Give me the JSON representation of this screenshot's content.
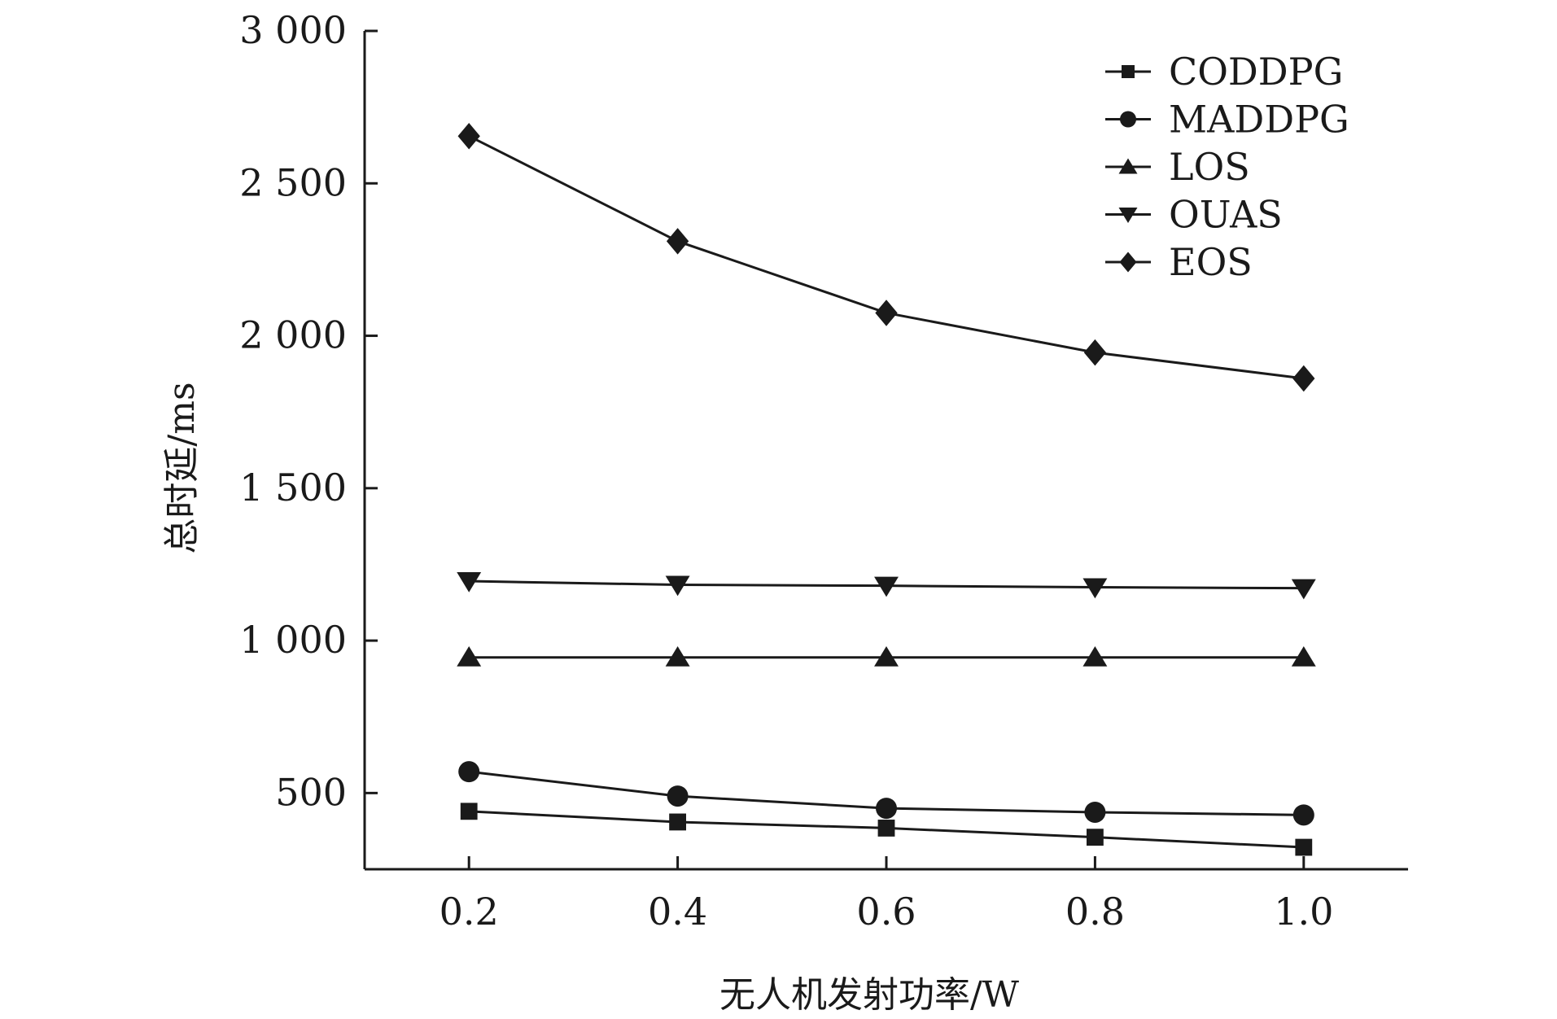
{
  "chart_data": {
    "type": "line",
    "title": "",
    "xlabel": "无人机发射功率/W",
    "ylabel": "总时延/ms",
    "x": [
      0.2,
      0.4,
      0.6,
      0.8,
      1.0
    ],
    "x_tick_labels": [
      "0.2",
      "0.4",
      "0.6",
      "0.8",
      "1.0"
    ],
    "y_ticks": [
      500,
      1000,
      1500,
      2000,
      2500,
      3000
    ],
    "y_tick_labels": [
      "500",
      "1 000",
      "1 500",
      "2 000",
      "2 500",
      "3 000"
    ],
    "xlim": [
      0.1,
      1.1
    ],
    "ylim": [
      250,
      3000
    ],
    "grid": false,
    "legend_position": "top-right",
    "series": [
      {
        "name": "CODDPG",
        "marker": "square",
        "values": [
          440,
          405,
          385,
          355,
          322
        ]
      },
      {
        "name": "MADDPG",
        "marker": "circle",
        "values": [
          570,
          490,
          450,
          437,
          428
        ]
      },
      {
        "name": "LOS",
        "marker": "triangle",
        "values": [
          945,
          945,
          945,
          945,
          945
        ]
      },
      {
        "name": "OUAS",
        "marker": "triangle-down",
        "values": [
          1195,
          1183,
          1180,
          1175,
          1172
        ]
      },
      {
        "name": "EOS",
        "marker": "diamond",
        "values": [
          2655,
          2310,
          2075,
          1945,
          1860
        ]
      }
    ],
    "colors": {
      "line": "#1a1a1a",
      "marker": "#1a1a1a",
      "axis": "#1a1a1a"
    }
  }
}
